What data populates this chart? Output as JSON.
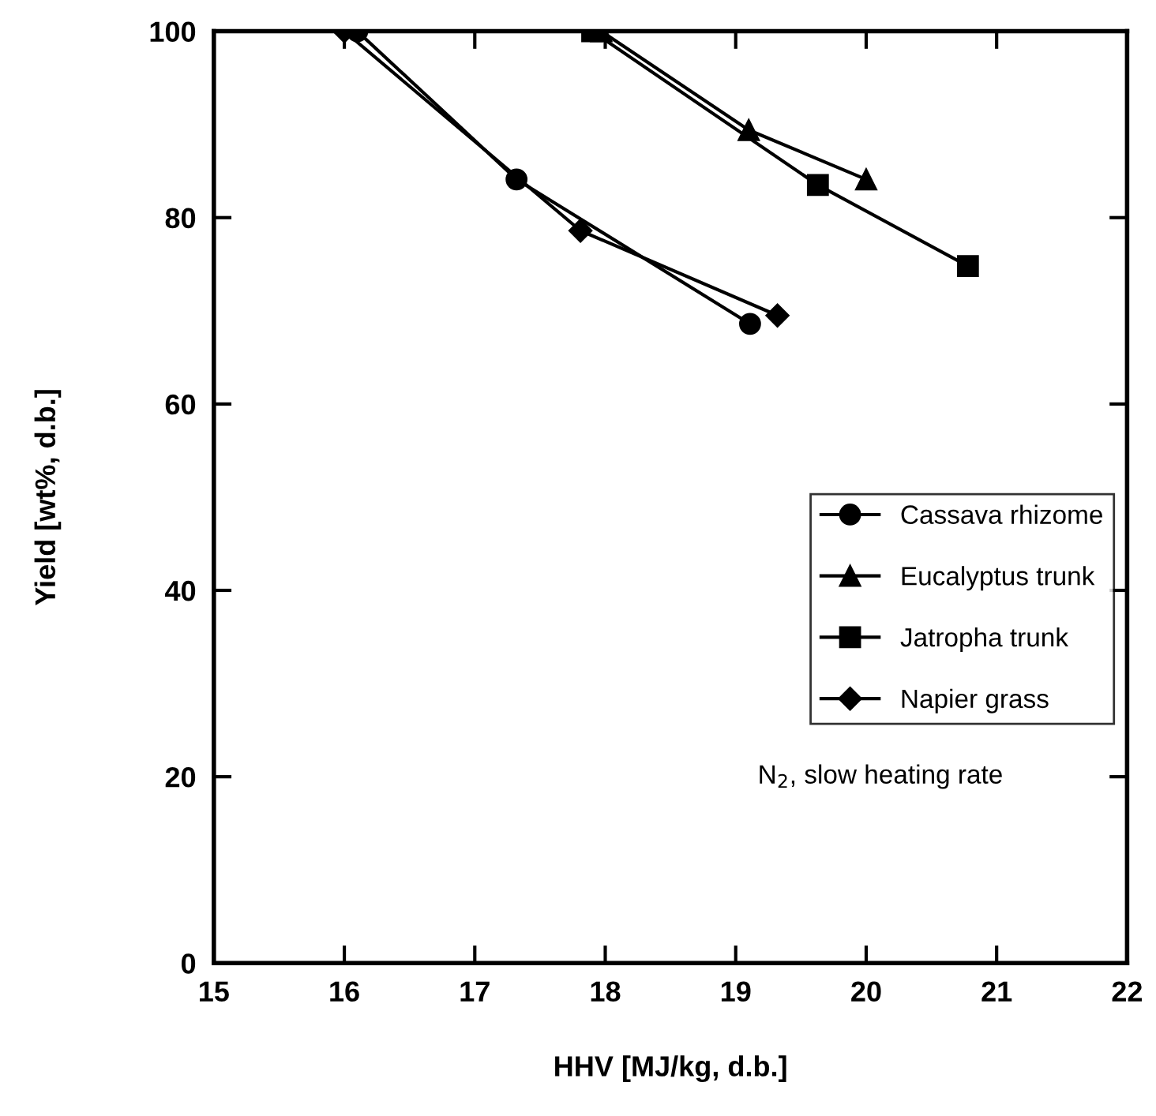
{
  "chart_data": {
    "type": "line",
    "xlabel": "HHV [MJ/kg, d.b.]",
    "ylabel": "Yield [wt%, d.b.]",
    "series": [
      {
        "name": "Cassava rhizome",
        "color": "#000000",
        "marker": "circle",
        "x": [
          16.1,
          17.32,
          19.11
        ],
        "values": [
          100,
          84.1,
          68.6
        ]
      },
      {
        "name": "Eucalyptus trunk",
        "color": "#000000",
        "marker": "triangle",
        "x": [
          17.97,
          19.1,
          20.0
        ],
        "values": [
          100,
          89.4,
          84.1
        ]
      },
      {
        "name": "Jatropha trunk",
        "color": "#000000",
        "marker": "square",
        "x": [
          17.9,
          19.63,
          20.78
        ],
        "values": [
          100,
          83.5,
          74.8
        ]
      },
      {
        "name": "Napier grass",
        "color": "#000000",
        "marker": "diamond",
        "x": [
          16.0,
          17.81,
          19.32
        ],
        "values": [
          100,
          78.6,
          69.5
        ]
      }
    ],
    "xlim": [
      15,
      22
    ],
    "xticks": [
      15,
      16,
      17,
      18,
      19,
      20,
      21,
      22
    ],
    "ylim": [
      0,
      100
    ],
    "yticks": [
      0,
      20,
      40,
      60,
      80,
      100
    ],
    "annotations": [
      "N$_{2}$, slow heating rate"
    ],
    "legend": "right",
    "grid": false,
    "line_style": "solid"
  }
}
